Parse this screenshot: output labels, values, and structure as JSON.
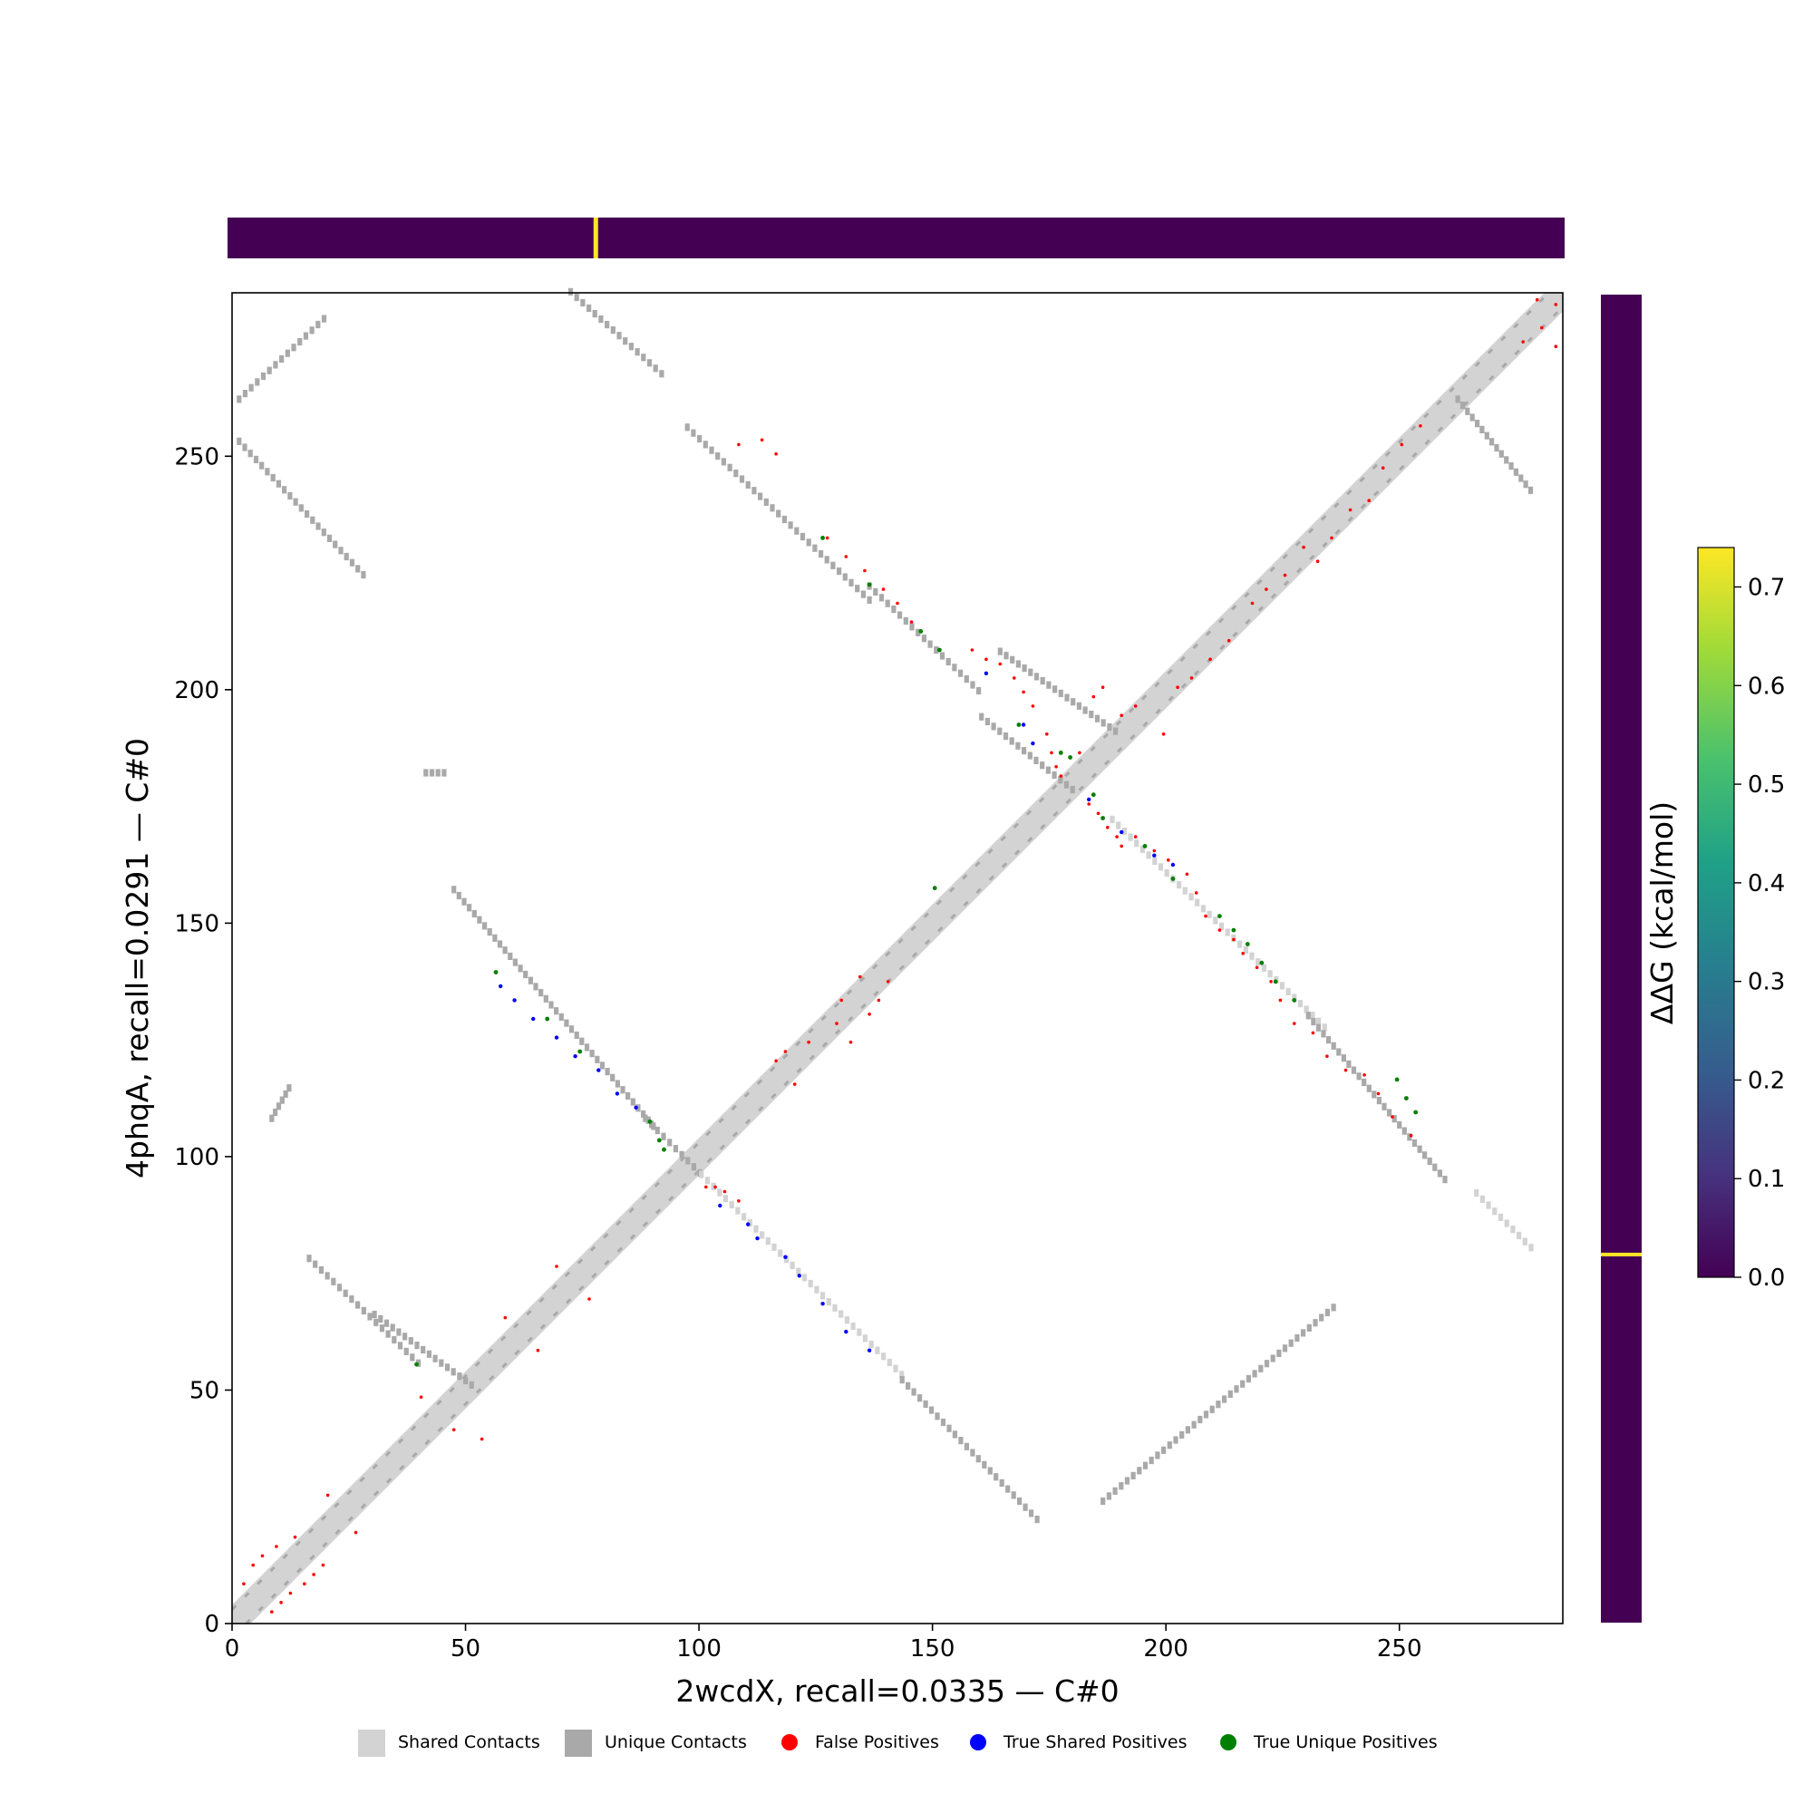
{
  "chart_data": {
    "type": "heatmap",
    "subtype": "contact-map",
    "xlabel": "2wcdX, recall=0.0335 — C#0",
    "ylabel": "4phqA, recall=0.0291 — C#0",
    "xlim": [
      0,
      285
    ],
    "ylim": [
      0,
      285
    ],
    "x_ticks": [
      0,
      50,
      100,
      150,
      200,
      250
    ],
    "y_ticks": [
      0,
      50,
      100,
      150,
      200,
      250
    ],
    "legend_placement": "bottom",
    "legend": [
      {
        "name": "Shared Contacts",
        "color": "#d3d3d3",
        "marker": "square"
      },
      {
        "name": "Unique Contacts",
        "color": "#a9a9a9",
        "marker": "square"
      },
      {
        "name": "False Positives",
        "color": "#ff0000",
        "marker": "circle"
      },
      {
        "name": "True Shared Positives",
        "color": "#0000ff",
        "marker": "circle"
      },
      {
        "name": "True Unique Positives",
        "color": "#008000",
        "marker": "circle"
      }
    ],
    "colorbar": {
      "label": "ΔΔG (kcal/mol)",
      "range": [
        0.0,
        0.74
      ],
      "colormap": "viridis",
      "ticks": [
        "0.0",
        "0.1",
        "0.2",
        "0.3",
        "0.4",
        "0.5",
        "0.6",
        "0.7"
      ]
    },
    "ddg_track_top": {
      "baseline": 0.0,
      "peaks": [
        {
          "x": 78.5,
          "value": 0.74
        }
      ]
    },
    "ddg_track_right": {
      "baseline": 0.0,
      "peaks": [
        {
          "y": 79,
          "value": 0.74
        }
      ]
    },
    "diagonal_band": {
      "shared_width": 8,
      "unique_offsets": [
        3,
        -3
      ]
    },
    "segments": [
      {
        "kind": "unique",
        "x": [
          1,
          20
        ],
        "y": [
          262,
          280
        ]
      },
      {
        "kind": "unique",
        "x": [
          1,
          28
        ],
        "y": [
          253,
          224
        ]
      },
      {
        "kind": "unique",
        "x": [
          72,
          92
        ],
        "y": [
          285,
          267
        ]
      },
      {
        "kind": "unique",
        "x": [
          97,
          136
        ],
        "y": [
          256,
          219
        ]
      },
      {
        "kind": "unique",
        "x": [
          136,
          160
        ],
        "y": [
          222,
          199
        ]
      },
      {
        "kind": "unique",
        "x": [
          160,
          180
        ],
        "y": [
          194,
          178
        ]
      },
      {
        "kind": "unique",
        "x": [
          164,
          190
        ],
        "y": [
          208,
          190
        ]
      },
      {
        "kind": "shared",
        "x": [
          188,
          234
        ],
        "y": [
          172,
          127
        ]
      },
      {
        "kind": "unique",
        "x": [
          230,
          260
        ],
        "y": [
          130,
          94
        ]
      },
      {
        "kind": "shared",
        "x": [
          266,
          278
        ],
        "y": [
          92,
          80
        ]
      },
      {
        "kind": "unique",
        "x": [
          262,
          278
        ],
        "y": [
          262,
          242
        ]
      },
      {
        "kind": "unique",
        "x": [
          47,
          90
        ],
        "y": [
          157,
          106
        ]
      },
      {
        "kind": "unique",
        "x": [
          88,
          100
        ],
        "y": [
          108,
          96
        ]
      },
      {
        "kind": "shared",
        "x": [
          100,
          143
        ],
        "y": [
          96,
          53
        ]
      },
      {
        "kind": "unique",
        "x": [
          143,
          172
        ],
        "y": [
          52,
          22
        ]
      },
      {
        "kind": "unique",
        "x": [
          186,
          236
        ],
        "y": [
          26,
          68
        ]
      },
      {
        "kind": "unique",
        "x": [
          16,
          40
        ],
        "y": [
          78,
          55
        ]
      },
      {
        "kind": "unique",
        "x": [
          41,
          45
        ],
        "y": [
          182,
          182
        ]
      },
      {
        "kind": "unique",
        "x": [
          8,
          12
        ],
        "y": [
          108,
          115
        ]
      },
      {
        "kind": "unique",
        "x": [
          30,
          52
        ],
        "y": [
          66,
          50
        ]
      }
    ],
    "false_positives": [
      [
        2,
        8
      ],
      [
        4,
        12
      ],
      [
        6,
        14
      ],
      [
        8,
        2
      ],
      [
        9,
        16
      ],
      [
        10,
        4
      ],
      [
        12,
        6
      ],
      [
        13,
        18
      ],
      [
        15,
        8
      ],
      [
        17,
        10
      ],
      [
        19,
        12
      ],
      [
        20,
        27
      ],
      [
        26,
        19
      ],
      [
        40,
        48
      ],
      [
        47,
        41
      ],
      [
        53,
        39
      ],
      [
        58,
        65
      ],
      [
        65,
        58
      ],
      [
        69,
        76
      ],
      [
        76,
        69
      ],
      [
        101,
        93
      ],
      [
        103,
        93
      ],
      [
        105,
        92
      ],
      [
        108,
        90
      ],
      [
        108,
        252
      ],
      [
        113,
        253
      ],
      [
        116,
        250
      ],
      [
        127,
        232
      ],
      [
        131,
        228
      ],
      [
        135,
        225
      ],
      [
        139,
        221
      ],
      [
        142,
        218
      ],
      [
        145,
        214
      ],
      [
        158,
        208
      ],
      [
        161,
        206
      ],
      [
        164,
        205
      ],
      [
        167,
        202
      ],
      [
        169,
        199
      ],
      [
        171,
        196
      ],
      [
        174,
        190
      ],
      [
        175,
        186
      ],
      [
        176,
        183
      ],
      [
        177,
        181
      ],
      [
        179,
        185
      ],
      [
        181,
        186
      ],
      [
        183,
        175
      ],
      [
        185,
        173
      ],
      [
        187,
        170
      ],
      [
        189,
        168
      ],
      [
        190,
        166
      ],
      [
        193,
        168
      ],
      [
        197,
        165
      ],
      [
        200,
        163
      ],
      [
        204,
        160
      ],
      [
        206,
        156
      ],
      [
        208,
        151
      ],
      [
        211,
        148
      ],
      [
        214,
        146
      ],
      [
        216,
        143
      ],
      [
        219,
        140
      ],
      [
        222,
        137
      ],
      [
        224,
        133
      ],
      [
        227,
        128
      ],
      [
        231,
        126
      ],
      [
        234,
        121
      ],
      [
        238,
        118
      ],
      [
        242,
        117
      ],
      [
        245,
        113
      ],
      [
        248,
        108
      ],
      [
        252,
        104
      ],
      [
        130,
        133
      ],
      [
        134,
        138
      ],
      [
        129,
        128
      ],
      [
        132,
        124
      ],
      [
        136,
        130
      ],
      [
        138,
        133
      ],
      [
        140,
        137
      ],
      [
        116,
        120
      ],
      [
        118,
        122
      ],
      [
        123,
        124
      ],
      [
        120,
        115
      ],
      [
        184,
        198
      ],
      [
        186,
        200
      ],
      [
        190,
        194
      ],
      [
        193,
        196
      ],
      [
        199,
        190
      ],
      [
        202,
        200
      ],
      [
        205,
        202
      ],
      [
        209,
        206
      ],
      [
        213,
        210
      ],
      [
        218,
        218
      ],
      [
        221,
        221
      ],
      [
        225,
        224
      ],
      [
        229,
        230
      ],
      [
        232,
        227
      ],
      [
        235,
        232
      ],
      [
        239,
        238
      ],
      [
        243,
        240
      ],
      [
        246,
        247
      ],
      [
        250,
        252
      ],
      [
        254,
        256
      ],
      [
        276,
        274
      ],
      [
        280,
        277
      ],
      [
        283,
        282
      ],
      [
        279,
        283
      ],
      [
        283,
        273
      ]
    ],
    "true_shared_positives": [
      [
        57,
        136
      ],
      [
        60,
        133
      ],
      [
        64,
        129
      ],
      [
        69,
        125
      ],
      [
        73,
        121
      ],
      [
        78,
        118
      ],
      [
        82,
        113
      ],
      [
        86,
        110
      ],
      [
        104,
        89
      ],
      [
        110,
        85
      ],
      [
        112,
        82
      ],
      [
        118,
        78
      ],
      [
        121,
        74
      ],
      [
        126,
        68
      ],
      [
        131,
        62
      ],
      [
        136,
        58
      ],
      [
        161,
        203
      ],
      [
        169,
        192
      ],
      [
        171,
        188
      ],
      [
        183,
        176
      ],
      [
        190,
        169
      ],
      [
        197,
        164
      ],
      [
        201,
        162
      ]
    ],
    "true_unique_positives": [
      [
        39,
        55
      ],
      [
        56,
        139
      ],
      [
        67,
        129
      ],
      [
        74,
        122
      ],
      [
        89,
        107
      ],
      [
        92,
        101
      ],
      [
        91,
        103
      ],
      [
        126,
        232
      ],
      [
        136,
        222
      ],
      [
        147,
        212
      ],
      [
        151,
        208
      ],
      [
        150,
        157
      ],
      [
        168,
        192
      ],
      [
        177,
        186
      ],
      [
        179,
        185
      ],
      [
        184,
        177
      ],
      [
        186,
        172
      ],
      [
        195,
        166
      ],
      [
        201,
        159
      ],
      [
        211,
        151
      ],
      [
        214,
        148
      ],
      [
        217,
        145
      ],
      [
        220,
        141
      ],
      [
        223,
        137
      ],
      [
        227,
        133
      ],
      [
        249,
        116
      ],
      [
        251,
        112
      ],
      [
        253,
        109
      ]
    ]
  }
}
